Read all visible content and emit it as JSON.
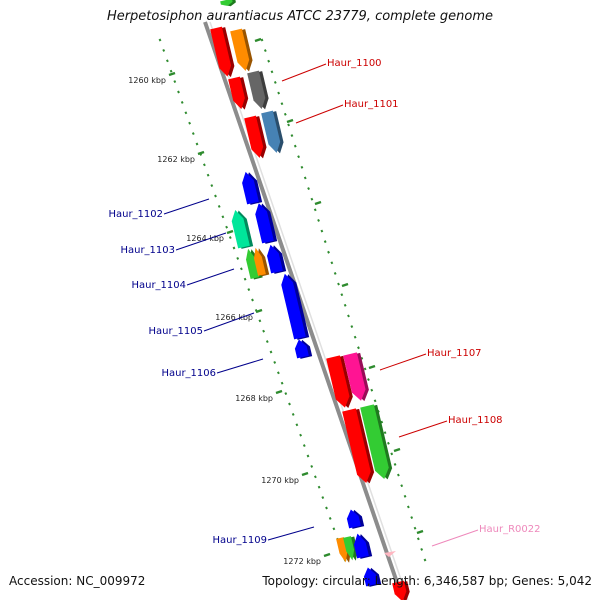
{
  "header": {
    "title": "Herpetosiphon aurantiacus ATCC 23779, complete genome"
  },
  "footer": {
    "accession": "Accession: NC_009972",
    "summary": "Topology: circular; Length: 6,346,587 bp; Genes: 5,042"
  },
  "tick_labels": [
    "1260 kbp",
    "1262 kbp",
    "1264 kbp",
    "1266 kbp",
    "1268 kbp",
    "1270 kbp",
    "1272 kbp"
  ],
  "gene_labels": [
    {
      "text": "Haur_1100",
      "color": "#cc0000"
    },
    {
      "text": "Haur_1101",
      "color": "#cc0000"
    },
    {
      "text": "Haur_1102",
      "color": "#00008b"
    },
    {
      "text": "Haur_1103",
      "color": "#00008b"
    },
    {
      "text": "Haur_1104",
      "color": "#00008b"
    },
    {
      "text": "Haur_1105",
      "color": "#00008b"
    },
    {
      "text": "Haur_1106",
      "color": "#00008b"
    },
    {
      "text": "Haur_1107",
      "color": "#cc0000"
    },
    {
      "text": "Haur_1108",
      "color": "#cc0000"
    },
    {
      "text": "Haur_1109",
      "color": "#00008b"
    },
    {
      "text": "Haur_R0022",
      "color": "#ee88bb"
    }
  ],
  "colors": {
    "backbone": "#8c8c8c",
    "tick": "#2e8b2e",
    "forward_gene": "#ff0000",
    "reverse_gene": "#0000ff",
    "orange_gene": "#ff8c00",
    "gray_gene": "#666666",
    "steel_gene": "#4682b4",
    "mint_gene": "#00e69a",
    "pink_gene": "#ff1493",
    "green_gene": "#33cc33",
    "rrna_gene": "#ffb6c1"
  }
}
